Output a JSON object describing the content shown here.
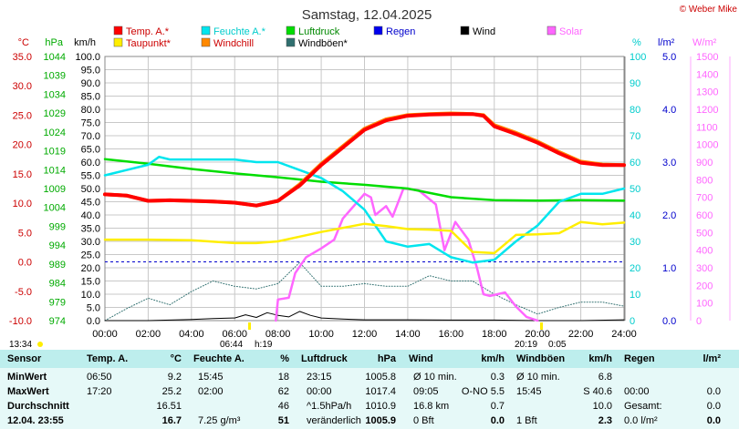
{
  "header": {
    "title": "Samstag, 12.04.2025",
    "copyright": "© Weber Mike"
  },
  "legend": [
    {
      "label": "Temp. A.*",
      "color": "#ff0000"
    },
    {
      "label": "Feuchte A.*",
      "color": "#00e5ee"
    },
    {
      "label": "Luftdruck",
      "color": "#00dd00"
    },
    {
      "label": "Regen",
      "color": "#0000ee"
    },
    {
      "label": "Wind",
      "color": "#000000"
    },
    {
      "label": "Solar",
      "color": "#ff66ff"
    },
    {
      "label": "Taupunkt*",
      "color": "#ffee00"
    },
    {
      "label": "Windchill",
      "color": "#ff8800"
    },
    {
      "label": "Windböen*",
      "color": "#2f6f6f"
    }
  ],
  "chart_data": {
    "type": "line",
    "axes": {
      "temp": {
        "unit": "°C",
        "min": -10,
        "max": 35,
        "ticks": [
          "35.0",
          "30.0",
          "25.0",
          "20.0",
          "15.0",
          "10.0",
          "5.0",
          "0.0",
          "-5.0",
          "-10.0"
        ]
      },
      "pressure": {
        "unit": "hPa",
        "min": 974,
        "max": 1044,
        "ticks": [
          "1044",
          "1039",
          "1034",
          "1029",
          "1024",
          "1019",
          "1014",
          "1009",
          "1004",
          "999",
          "994",
          "989",
          "984",
          "979",
          "974"
        ]
      },
      "wind": {
        "unit": "km/h",
        "min": 0,
        "max": 100,
        "ticks": [
          "100.0",
          "95.0",
          "90.0",
          "85.0",
          "80.0",
          "75.0",
          "70.0",
          "65.0",
          "60.0",
          "55.0",
          "50.0",
          "45.0",
          "40.0",
          "35.0",
          "30.0",
          "25.0",
          "20.0",
          "15.0",
          "10.0",
          "5.0",
          "0.0"
        ]
      },
      "humidity": {
        "unit": "%",
        "min": 0,
        "max": 100,
        "ticks": [
          "100",
          "90",
          "80",
          "70",
          "60",
          "50",
          "40",
          "30",
          "20",
          "10",
          "0"
        ]
      },
      "rain": {
        "unit": "l/m²",
        "min": 0,
        "max": 5,
        "ticks": [
          "5.0",
          "4.0",
          "3.0",
          "2.0",
          "1.0",
          "0.0"
        ]
      },
      "solar": {
        "unit": "W/m²",
        "min": 0,
        "max": 1500,
        "ticks": [
          "1500",
          "1400",
          "1300",
          "1200",
          "1100",
          "1000",
          "900",
          "800",
          "700",
          "600",
          "500",
          "400",
          "300",
          "200",
          "100",
          "0"
        ]
      },
      "x": {
        "min": 0,
        "max": 24,
        "ticks": [
          "00:00",
          "02:00",
          "04:00",
          "06:00",
          "08:00",
          "10:00",
          "12:00",
          "14:00",
          "16:00",
          "18:00",
          "20:00",
          "22:00",
          "24:00"
        ]
      }
    },
    "series": [
      {
        "name": "Temp. A.*",
        "axis": "temp",
        "x": [
          0,
          1,
          2,
          3,
          4,
          5,
          6,
          7,
          8,
          9,
          10,
          11,
          12,
          13,
          14,
          15,
          16,
          17,
          17.5,
          18,
          19,
          20,
          21,
          22,
          23,
          24
        ],
        "y": [
          11.5,
          11.3,
          10.4,
          10.5,
          10.4,
          10.3,
          10.1,
          9.6,
          10.4,
          13.0,
          16.5,
          19.5,
          22.5,
          24.1,
          24.9,
          25.1,
          25.2,
          25.2,
          24.9,
          23.1,
          21.8,
          20.3,
          18.5,
          16.9,
          16.5,
          16.5
        ]
      },
      {
        "name": "Taupunkt*",
        "axis": "temp",
        "x": [
          0,
          2,
          4,
          6,
          7,
          8,
          9,
          10,
          11,
          12,
          13,
          14,
          15,
          16,
          17,
          18,
          19,
          20,
          21,
          22,
          23,
          24
        ],
        "y": [
          3.8,
          3.8,
          3.7,
          3.2,
          3.2,
          3.5,
          4.3,
          5.1,
          5.8,
          6.5,
          6.1,
          5.6,
          5.5,
          5.3,
          1.7,
          1.5,
          4.6,
          4.7,
          4.9,
          6.8,
          6.4,
          6.7
        ]
      },
      {
        "name": "Windchill",
        "axis": "temp",
        "x": [
          0,
          1,
          2,
          3,
          4,
          5,
          6,
          7,
          8,
          9,
          10,
          11,
          12,
          13,
          14,
          15,
          16,
          17,
          17.5,
          18,
          19,
          20,
          21,
          22,
          23,
          24
        ],
        "y": [
          11.5,
          11.3,
          10.4,
          10.5,
          10.4,
          10.3,
          10.1,
          9.6,
          10.4,
          13.2,
          16.7,
          19.7,
          22.7,
          24.3,
          25.0,
          25.2,
          25.3,
          25.2,
          25.0,
          23.3,
          22.0,
          20.5,
          18.7,
          17.1,
          16.6,
          16.5
        ]
      },
      {
        "name": "Feuchte A.*",
        "axis": "humidity",
        "x": [
          0,
          1,
          2,
          2.5,
          3,
          4,
          5,
          6,
          7,
          8,
          9,
          10,
          11,
          12,
          13,
          14,
          15,
          16,
          17,
          18,
          19,
          20,
          21,
          22,
          23,
          24
        ],
        "y": [
          55,
          57,
          59,
          62,
          61,
          61,
          61,
          61,
          60,
          60,
          57,
          54,
          49,
          42,
          30,
          28,
          29,
          24,
          22,
          23,
          30,
          36,
          45,
          48,
          48,
          50
        ]
      },
      {
        "name": "Luftdruck",
        "axis": "pressure",
        "x": [
          0,
          2,
          4,
          6,
          8,
          10,
          12,
          14,
          16,
          18,
          20,
          22,
          24
        ],
        "y": [
          1016.8,
          1015.6,
          1014.2,
          1013.0,
          1012.0,
          1010.8,
          1010.0,
          1009.0,
          1006.7,
          1005.9,
          1005.8,
          1005.9,
          1005.8
        ]
      },
      {
        "name": "Solar",
        "axis": "solar",
        "x": [
          7.9,
          8.0,
          8.5,
          8.8,
          9.3,
          10,
          10.6,
          11,
          12,
          12.3,
          12.5,
          13,
          13.3,
          13.8,
          14.5,
          15.3,
          15.7,
          16.2,
          16.8,
          17.2,
          17.5,
          17.8,
          18.5,
          19,
          19.5,
          20.0
        ],
        "y": [
          0,
          120,
          130,
          270,
          360,
          410,
          460,
          580,
          720,
          700,
          600,
          650,
          590,
          750,
          740,
          660,
          400,
          560,
          460,
          300,
          150,
          140,
          160,
          80,
          20,
          0
        ]
      },
      {
        "name": "Wind",
        "axis": "wind",
        "x": [
          0,
          2,
          4,
          5,
          6,
          6.5,
          7,
          7.5,
          8,
          8.5,
          9,
          9.5,
          10,
          11,
          12,
          14,
          16,
          18,
          20,
          22,
          24
        ],
        "y": [
          0,
          0,
          0.4,
          0.8,
          1.0,
          2.2,
          1.2,
          3.0,
          2.0,
          1.4,
          3.5,
          2.0,
          1.0,
          0.6,
          0.3,
          0.3,
          0.2,
          0.2,
          0,
          0,
          0.3
        ]
      },
      {
        "name": "Windböen*",
        "axis": "wind",
        "x": [
          0,
          1,
          2,
          3,
          4,
          5,
          6,
          7,
          8,
          9,
          10,
          11,
          12,
          13,
          14,
          15,
          16,
          17,
          18,
          19,
          20,
          21,
          22,
          23,
          24
        ],
        "y": [
          0,
          4.5,
          8.5,
          6.0,
          11.0,
          15.0,
          13.0,
          12.0,
          14.0,
          22.0,
          13.0,
          13.0,
          14.0,
          13.0,
          13.0,
          17.0,
          15.0,
          15.0,
          10.0,
          6.0,
          2.5,
          5.0,
          7.0,
          7.0,
          5.5
        ]
      }
    ],
    "ref_line": {
      "axis": "temp",
      "value": 0
    },
    "annotations": {
      "left_time": "13:34",
      "sunrise": "06:44",
      "day_length": "h:19",
      "sunset": "20:19",
      "sun_extra": "0:05"
    }
  },
  "table": {
    "headers": [
      "Sensor",
      "Temp. A.",
      "°C",
      "Feuchte A.",
      "%",
      "Luftdruck",
      "hPa",
      "Wind",
      "km/h",
      "Windböen",
      "km/h",
      "Regen",
      "l/m²"
    ],
    "rows": [
      {
        "label": "MinWert",
        "c1": "06:50",
        "c2": "9.2",
        "c3": "15:45",
        "c4": "18",
        "c5": "23:15",
        "c6": "1005.8",
        "c7": "Ø 10 min.",
        "c8": "0.3",
        "c9": "Ø 10 min.",
        "c10": "6.8",
        "c11": "",
        "c12": ""
      },
      {
        "label": "MaxWert",
        "c1": "17:20",
        "c2": "25.2",
        "c3": "02:00",
        "c4": "62",
        "c5": "00:00",
        "c6": "1017.4",
        "c7": "09:05",
        "c7b": "O-NO 5.5",
        "c8": "",
        "c9": "15:45",
        "c10": "S 40.6",
        "c11": "00:00",
        "c12": "0.0"
      },
      {
        "label": "Durchschnitt",
        "c1": "",
        "c2": "16.51",
        "c3": "",
        "c4": "46",
        "c5": "^1.5hPa/h",
        "c6": "1010.9",
        "c7": "16.8 km",
        "c8": "0.7",
        "c9": "",
        "c10": "10.0",
        "c11": "Gesamt:",
        "c12": "0.0"
      },
      {
        "label": "12.04. 23:55",
        "c1": "",
        "c2": "16.7",
        "c3": "7.25 g/m³",
        "c4": "51",
        "c5": "veränderlich",
        "c6": "1005.9",
        "c7": "0 Bft",
        "c8": "0.0",
        "c9": "1 Bft",
        "c10": "2.3",
        "c11": "0.0 l/m²",
        "c12": "0.0"
      }
    ]
  }
}
